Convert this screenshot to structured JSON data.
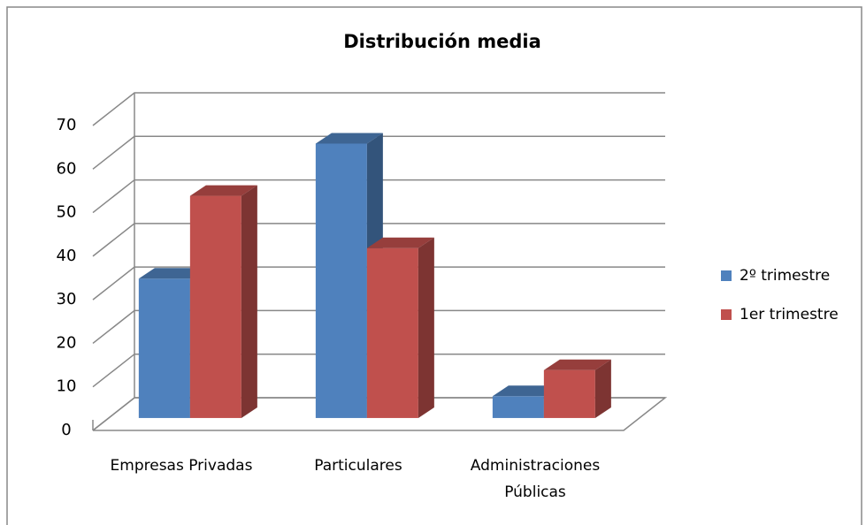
{
  "chart_data": {
    "type": "bar3d",
    "title": "Distribución media",
    "categories": [
      "Empresas Privadas",
      "Particulares",
      "Administraciones Públicas"
    ],
    "series": [
      {
        "name": "2º trimestre",
        "color": "#4f81bd",
        "values": [
          32,
          63,
          5
        ]
      },
      {
        "name": "1er trimestre",
        "color": "#c0504d",
        "values": [
          51,
          39,
          11
        ]
      }
    ],
    "ylim": [
      0,
      70
    ],
    "yticks": [
      0,
      10,
      20,
      30,
      40,
      50,
      60,
      70
    ],
    "grid": true,
    "legend": "right"
  }
}
